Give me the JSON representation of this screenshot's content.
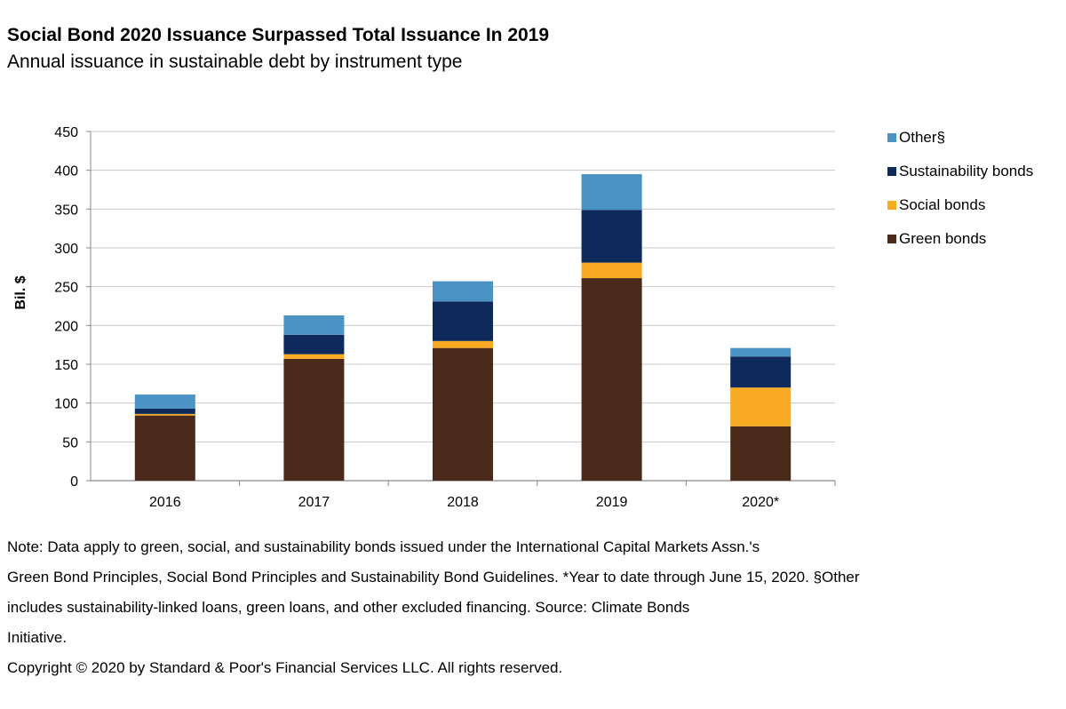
{
  "chart_data": {
    "type": "bar",
    "stacked": true,
    "title": "Social Bond 2020 Issuance Surpassed Total Issuance In 2019",
    "subtitle": "Annual issuance in sustainable debt by instrument type",
    "xlabel": "",
    "ylabel": "Bil. $",
    "ylim": [
      0,
      450
    ],
    "yticks": [
      0,
      50,
      100,
      150,
      200,
      250,
      300,
      350,
      400,
      450
    ],
    "grid": true,
    "legend_position": "right",
    "categories": [
      "2016",
      "2017",
      "2018",
      "2019",
      "2020*"
    ],
    "series": [
      {
        "name": "Green bonds",
        "color": "#4a2a1a",
        "values": [
          84,
          157,
          171,
          261,
          70
        ]
      },
      {
        "name": "Social bonds",
        "color": "#f7aa22",
        "values": [
          2,
          6,
          9,
          20,
          50
        ]
      },
      {
        "name": "Sustainability bonds",
        "color": "#0e2a5a",
        "values": [
          7,
          25,
          51,
          68,
          40
        ]
      },
      {
        "name": "Other§",
        "color": "#4b93c4",
        "values": [
          18,
          25,
          26,
          46,
          11
        ]
      }
    ],
    "legend_order": [
      "Other§",
      "Sustainability bonds",
      "Social bonds",
      "Green bonds"
    ]
  },
  "notes": {
    "lines": [
      "Note: Data apply to green, social, and sustainability bonds issued under the International Capital Markets Assn.'s",
      "Green Bond Principles, Social Bond Principles and Sustainability Bond Guidelines. *Year to date through June 15, 2020.  §Other",
      "includes sustainability-linked loans, green loans, and other excluded financing. Source: Climate Bonds",
      "Initiative."
    ],
    "copyright": "Copyright © 2020 by Standard & Poor's Financial Services LLC. All rights reserved."
  }
}
